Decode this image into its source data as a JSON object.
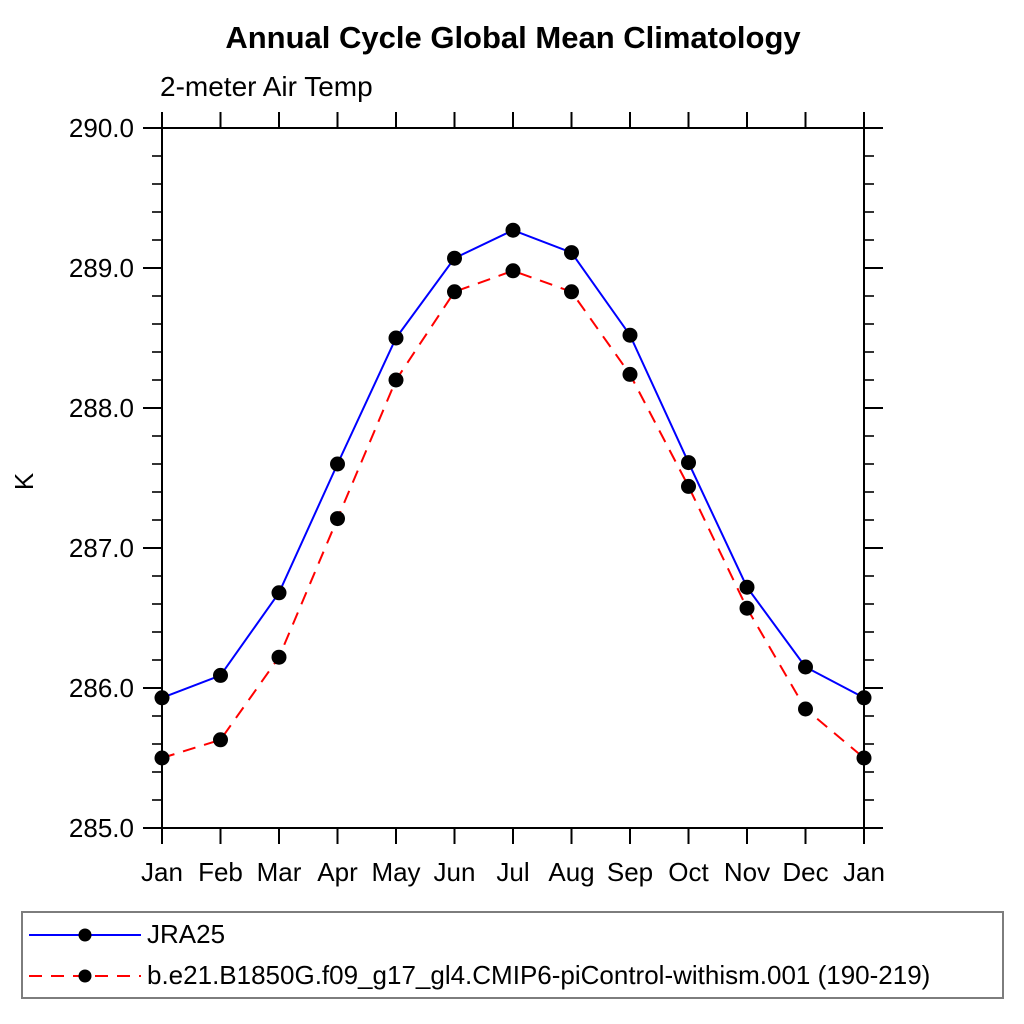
{
  "chart": {
    "title": "Annual Cycle Global Mean Climatology",
    "subtitle": "2-meter Air Temp",
    "ylabel": "K"
  },
  "chart_data": {
    "type": "line",
    "title": "Annual Cycle Global Mean Climatology",
    "subtitle": "2-meter Air Temp",
    "xlabel": "",
    "ylabel": "K",
    "categories": [
      "Jan",
      "Feb",
      "Mar",
      "Apr",
      "May",
      "Jun",
      "Jul",
      "Aug",
      "Sep",
      "Oct",
      "Nov",
      "Dec",
      "Jan"
    ],
    "ylim": [
      285.0,
      290.0
    ],
    "y_major_ticks": [
      285.0,
      286.0,
      287.0,
      288.0,
      289.0,
      290.0
    ],
    "y_tick_labels": [
      "285.0",
      "286.0",
      "287.0",
      "288.0",
      "289.0",
      "290.0"
    ],
    "y_minor_tick_interval": 0.2,
    "grid": false,
    "frame": "box",
    "tick_direction": "out",
    "legend_position": "bottom-left-box",
    "axis_color": "#000000",
    "marker_shape": "filled-circle",
    "series": [
      {
        "name": "JRA25",
        "color": "#0000ff",
        "line_style": "solid",
        "marker_color": "#000000",
        "values": [
          285.93,
          286.09,
          286.68,
          287.6,
          288.5,
          289.07,
          289.27,
          289.11,
          288.52,
          287.61,
          286.72,
          286.15,
          285.93
        ]
      },
      {
        "name": "b.e21.B1850G.f09_g17_gl4.CMIP6-piControl-withism.001 (190-219)",
        "color": "#ff0000",
        "line_style": "dashed",
        "marker_color": "#000000",
        "values": [
          285.5,
          285.63,
          286.22,
          287.21,
          288.2,
          288.83,
          288.98,
          288.83,
          288.24,
          287.44,
          286.57,
          285.85,
          285.5
        ]
      }
    ]
  }
}
